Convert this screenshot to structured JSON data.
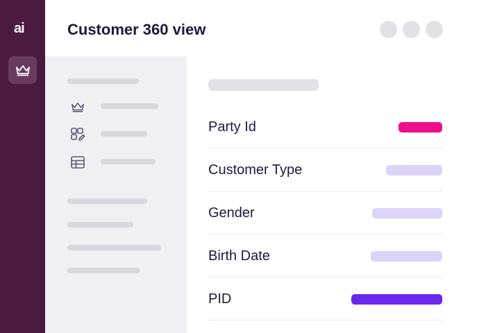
{
  "app": {
    "logo_text": "ai",
    "title": "Customer 360 view"
  },
  "fields": [
    {
      "label": "Party Id",
      "color": "#ec0f8c"
    },
    {
      "label": "Customer Type",
      "color": "#dcd3f8"
    },
    {
      "label": "Gender",
      "color": "#dcd3f8"
    },
    {
      "label": "Birth Date",
      "color": "#dcd3f8"
    },
    {
      "label": "PID",
      "color": "#6a27ee"
    }
  ],
  "nav_icons": [
    "crown-icon",
    "grid-edit-icon",
    "table-icon"
  ],
  "colors": {
    "rail": "#4a1a3f",
    "accent_pink": "#ec0f8c",
    "accent_purple": "#6a27ee",
    "placeholder": "#dcd3f8"
  }
}
